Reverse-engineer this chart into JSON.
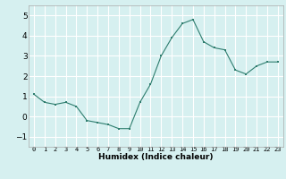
{
  "x": [
    0,
    1,
    2,
    3,
    4,
    5,
    6,
    7,
    8,
    9,
    10,
    11,
    12,
    13,
    14,
    15,
    16,
    17,
    18,
    19,
    20,
    21,
    22,
    23
  ],
  "y": [
    1.1,
    0.7,
    0.6,
    0.7,
    0.5,
    -0.2,
    -0.3,
    -0.4,
    -0.6,
    -0.6,
    0.7,
    1.6,
    3.0,
    3.9,
    4.6,
    4.8,
    3.7,
    3.4,
    3.3,
    2.3,
    2.1,
    2.5,
    2.7,
    2.7
  ],
  "xlabel": "Humidex (Indice chaleur)",
  "ylim": [
    -1.5,
    5.5
  ],
  "xlim": [
    -0.5,
    23.5
  ],
  "yticks": [
    -1,
    0,
    1,
    2,
    3,
    4,
    5
  ],
  "xtick_labels": [
    "0",
    "1",
    "2",
    "3",
    "4",
    "5",
    "6",
    "7",
    "8",
    "9",
    "10",
    "11",
    "12",
    "13",
    "14",
    "15",
    "16",
    "17",
    "18",
    "19",
    "20",
    "21",
    "22",
    "23"
  ],
  "line_color": "#2e7d6e",
  "marker_color": "#2e7d6e",
  "bg_color": "#d6f0f0",
  "grid_color": "#ffffff",
  "fig_bg": "#d6f0f0"
}
